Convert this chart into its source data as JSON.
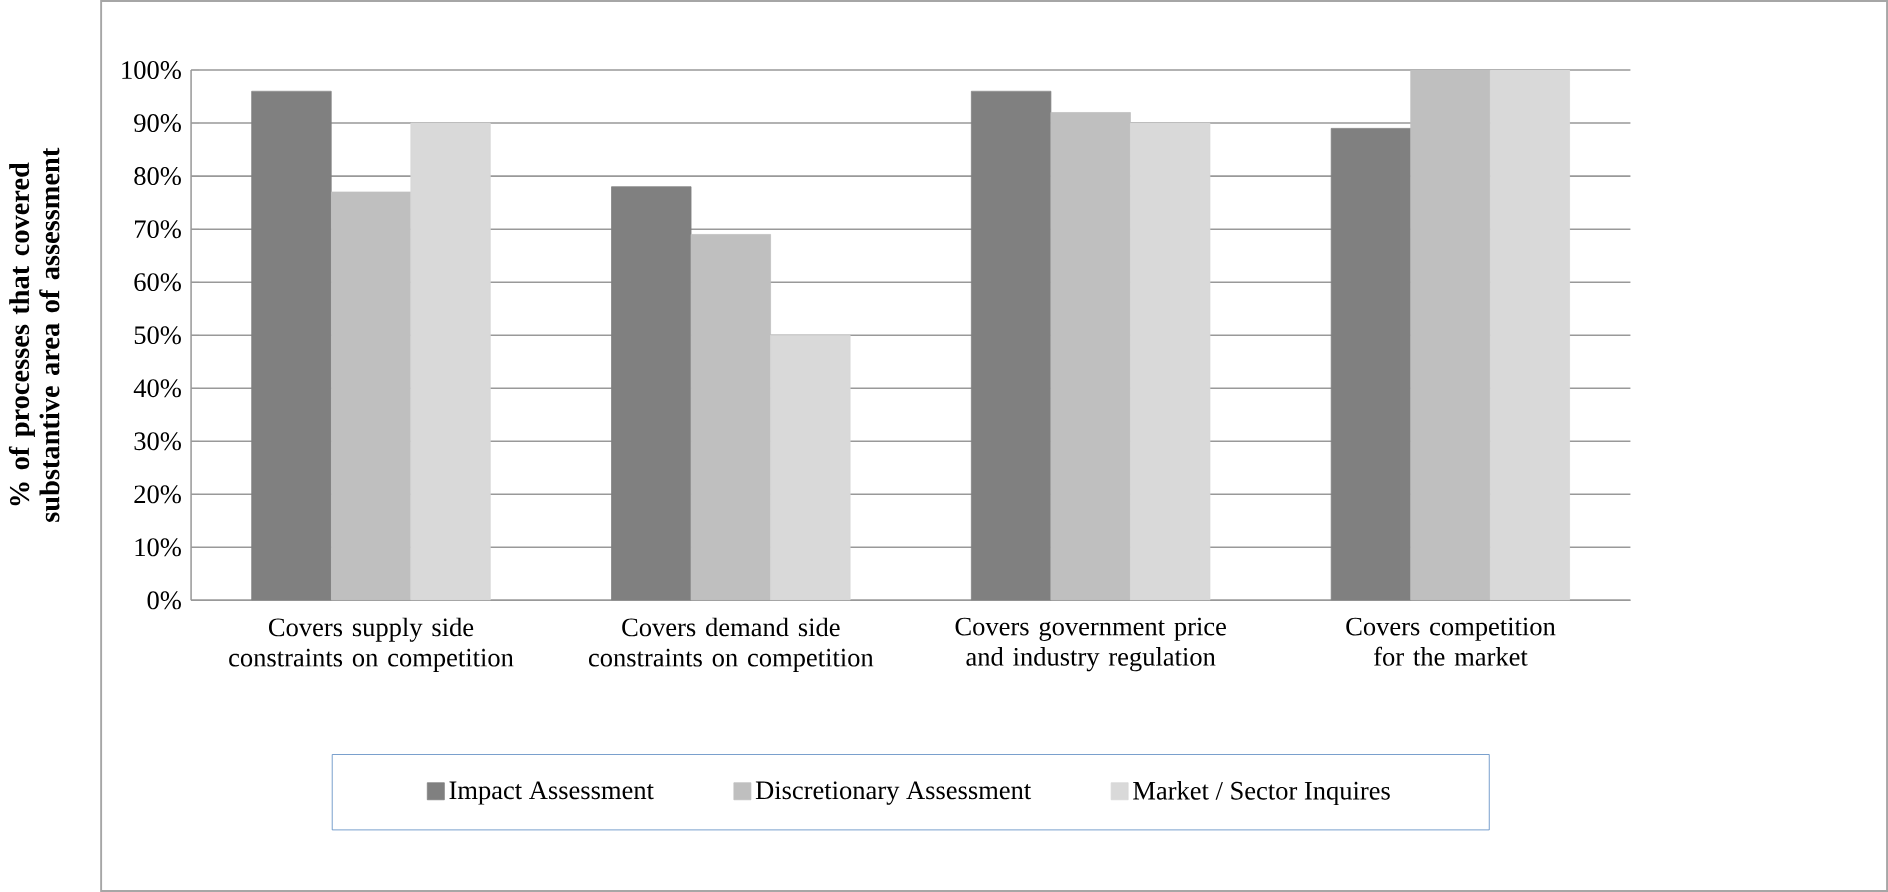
{
  "chart_data": {
    "type": "bar",
    "ylabel": "% of processes that covered substantive area of assessment",
    "categories": [
      "Covers supply side constraints on competition",
      "Covers demand side constraints on competition",
      "Covers government price and industry regulation",
      "Covers competition for the market"
    ],
    "series": [
      {
        "name": "Impact Assessment",
        "color": "#808080",
        "values": [
          96,
          78,
          96,
          89
        ]
      },
      {
        "name": "Discretionary Assessment",
        "color": "#bfbfbf",
        "values": [
          77,
          69,
          92,
          100
        ]
      },
      {
        "name": "Market / Sector Inquires",
        "color": "#d9d9d9",
        "values": [
          90,
          50,
          90,
          100
        ]
      }
    ],
    "ylim": [
      0,
      100
    ],
    "yticks": [
      {
        "value": 0,
        "label": "0%"
      },
      {
        "value": 10,
        "label": "10%"
      },
      {
        "value": 20,
        "label": "20%"
      },
      {
        "value": 30,
        "label": "30%"
      },
      {
        "value": 40,
        "label": "40%"
      },
      {
        "value": 50,
        "label": "50%"
      },
      {
        "value": 60,
        "label": "60%"
      },
      {
        "value": 70,
        "label": "70%"
      },
      {
        "value": 80,
        "label": "80%"
      },
      {
        "value": 90,
        "label": "90%"
      },
      {
        "value": 100,
        "label": "100%"
      }
    ],
    "grid": "y",
    "legend": "bottom"
  }
}
